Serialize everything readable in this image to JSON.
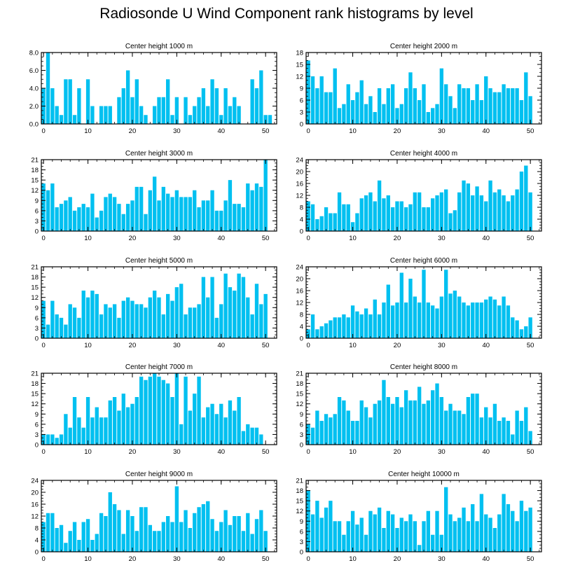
{
  "chart_data": [
    {
      "type": "bar",
      "title": "Center height 1000 m",
      "ylim": [
        0,
        8
      ],
      "yticks": [
        0,
        2,
        4,
        6,
        8
      ],
      "ytick_labels": [
        "0.0",
        "2.0",
        "4.0",
        "6.0",
        "8.0"
      ],
      "xlim": [
        -0.5,
        52.5
      ],
      "xticks": [
        0,
        10,
        20,
        30,
        40,
        50
      ],
      "xtick_labels": [
        "0",
        "10",
        "20",
        "30",
        "40",
        "50"
      ],
      "values": [
        4,
        8,
        4,
        2,
        1,
        5,
        5,
        1,
        4,
        0,
        5,
        2,
        0,
        2,
        2,
        2,
        0,
        3,
        4,
        6,
        3,
        5,
        2,
        1,
        0,
        2,
        3,
        3,
        5,
        1,
        3,
        0,
        3,
        1,
        2,
        3,
        4,
        2,
        5,
        4,
        1,
        4,
        2,
        3,
        2,
        0,
        0,
        5,
        4,
        6,
        1,
        1
      ]
    },
    {
      "type": "bar",
      "title": "Center height 2000 m",
      "ylim": [
        0,
        18
      ],
      "yticks": [
        0,
        3,
        6,
        9,
        12,
        15,
        18
      ],
      "ytick_labels": [
        "0",
        "3",
        "6",
        "9",
        "12",
        "15",
        "18"
      ],
      "xlim": [
        -0.5,
        52.5
      ],
      "xticks": [
        0,
        10,
        20,
        30,
        40,
        50
      ],
      "xtick_labels": [
        "0",
        "10",
        "20",
        "30",
        "40",
        "50"
      ],
      "values": [
        16,
        12,
        9,
        12,
        8,
        8,
        14,
        4,
        5,
        10,
        6,
        8,
        11,
        5,
        7,
        3,
        9,
        5,
        9,
        10,
        4,
        5,
        9,
        13,
        9,
        6,
        10,
        3,
        4,
        5,
        14,
        10,
        7,
        4,
        10,
        9,
        9,
        6,
        10,
        6,
        12,
        9,
        8,
        8,
        10,
        9,
        9,
        9,
        6,
        13,
        7
      ]
    },
    {
      "type": "bar",
      "title": "Center height 3000 m",
      "ylim": [
        0,
        21
      ],
      "yticks": [
        0,
        3,
        6,
        9,
        12,
        15,
        18,
        21
      ],
      "ytick_labels": [
        "0",
        "3",
        "6",
        "9",
        "12",
        "15",
        "18",
        "21"
      ],
      "xlim": [
        -0.5,
        52.5
      ],
      "xticks": [
        0,
        10,
        20,
        30,
        40,
        50
      ],
      "xtick_labels": [
        "0",
        "10",
        "20",
        "30",
        "40",
        "50"
      ],
      "values": [
        14,
        12,
        14,
        7,
        8,
        9,
        10,
        6,
        7,
        8,
        7,
        11,
        4,
        6,
        10,
        11,
        10,
        8,
        5,
        8,
        9,
        13,
        13,
        5,
        12,
        16,
        9,
        13,
        11,
        10,
        12,
        10,
        10,
        10,
        12,
        7,
        9,
        9,
        12,
        6,
        6,
        9,
        15,
        8,
        8,
        7,
        14,
        12,
        14,
        13,
        21
      ]
    },
    {
      "type": "bar",
      "title": "Center height 4000 m",
      "ylim": [
        0,
        24
      ],
      "yticks": [
        0,
        4,
        8,
        12,
        16,
        20,
        24
      ],
      "ytick_labels": [
        "0",
        "4",
        "8",
        "12",
        "16",
        "20",
        "24"
      ],
      "xlim": [
        -0.5,
        52.5
      ],
      "xticks": [
        0,
        10,
        20,
        30,
        40,
        50
      ],
      "xtick_labels": [
        "0",
        "10",
        "20",
        "30",
        "40",
        "50"
      ],
      "values": [
        10,
        9,
        4,
        5,
        8,
        6,
        6,
        13,
        9,
        9,
        3,
        6,
        11,
        12,
        13,
        10,
        17,
        11,
        12,
        8,
        10,
        10,
        8,
        9,
        13,
        13,
        8,
        8,
        11,
        12,
        13,
        14,
        6,
        7,
        13,
        17,
        16,
        12,
        15,
        12,
        10,
        17,
        13,
        14,
        12,
        10,
        12,
        14,
        20,
        22,
        13
      ]
    },
    {
      "type": "bar",
      "title": "Center height 5000 m",
      "ylim": [
        0,
        21
      ],
      "yticks": [
        0,
        3,
        6,
        9,
        12,
        15,
        18,
        21
      ],
      "ytick_labels": [
        "0",
        "3",
        "6",
        "9",
        "12",
        "15",
        "18",
        "21"
      ],
      "xlim": [
        -0.5,
        52.5
      ],
      "xticks": [
        0,
        10,
        20,
        30,
        40,
        50
      ],
      "xtick_labels": [
        "0",
        "10",
        "20",
        "30",
        "40",
        "50"
      ],
      "values": [
        11,
        4,
        11,
        7,
        6,
        4,
        10,
        9,
        6,
        14,
        12,
        14,
        13,
        7,
        10,
        9,
        10,
        6,
        11,
        12,
        11,
        10,
        10,
        9,
        12,
        14,
        12,
        7,
        13,
        11,
        15,
        16,
        7,
        9,
        9,
        10,
        18,
        12,
        18,
        6,
        10,
        19,
        15,
        14,
        19,
        18,
        12,
        7,
        16,
        10,
        13
      ]
    },
    {
      "type": "bar",
      "title": "Center height 6000 m",
      "ylim": [
        0,
        24
      ],
      "yticks": [
        0,
        4,
        8,
        12,
        16,
        20,
        24
      ],
      "ytick_labels": [
        "0",
        "4",
        "8",
        "12",
        "16",
        "20",
        "24"
      ],
      "xlim": [
        -0.5,
        52.5
      ],
      "xticks": [
        0,
        10,
        20,
        30,
        40,
        50
      ],
      "xtick_labels": [
        "0",
        "10",
        "20",
        "30",
        "40",
        "50"
      ],
      "values": [
        3,
        8,
        3,
        4,
        5,
        6,
        7,
        7,
        8,
        7,
        11,
        9,
        8,
        10,
        8,
        13,
        8,
        12,
        18,
        11,
        12,
        22,
        12,
        20,
        14,
        12,
        23,
        12,
        11,
        10,
        14,
        23,
        15,
        16,
        14,
        12,
        11,
        12,
        12,
        12,
        13,
        14,
        13,
        11,
        14,
        11,
        7,
        6,
        3,
        4,
        7
      ]
    },
    {
      "type": "bar",
      "title": "Center height 7000 m",
      "ylim": [
        0,
        21
      ],
      "yticks": [
        0,
        3,
        6,
        9,
        12,
        15,
        18,
        21
      ],
      "ytick_labels": [
        "0",
        "3",
        "6",
        "9",
        "12",
        "15",
        "18",
        "21"
      ],
      "xlim": [
        -0.5,
        52.5
      ],
      "xticks": [
        0,
        10,
        20,
        30,
        40,
        50
      ],
      "xtick_labels": [
        "0",
        "10",
        "20",
        "30",
        "40",
        "50"
      ],
      "values": [
        3,
        3,
        3,
        2,
        3,
        9,
        5,
        14,
        8,
        5,
        14,
        8,
        11,
        8,
        8,
        13,
        14,
        10,
        15,
        11,
        12,
        14,
        20,
        19,
        20,
        21,
        20,
        19,
        18,
        14,
        21,
        6,
        20,
        10,
        15,
        20,
        8,
        11,
        12,
        9,
        12,
        8,
        13,
        10,
        14,
        4,
        6,
        5,
        5,
        3
      ]
    },
    {
      "type": "bar",
      "title": "Center height 8000 m",
      "ylim": [
        0,
        21
      ],
      "yticks": [
        0,
        3,
        6,
        9,
        12,
        15,
        18,
        21
      ],
      "ytick_labels": [
        "0",
        "3",
        "6",
        "9",
        "12",
        "15",
        "18",
        "21"
      ],
      "xlim": [
        -0.5,
        52.5
      ],
      "xticks": [
        0,
        10,
        20,
        30,
        40,
        50
      ],
      "xtick_labels": [
        "0",
        "10",
        "20",
        "30",
        "40",
        "50"
      ],
      "values": [
        6,
        5,
        10,
        7,
        9,
        8,
        9,
        14,
        13,
        10,
        7,
        7,
        13,
        11,
        8,
        12,
        13,
        19,
        14,
        12,
        14,
        11,
        16,
        13,
        13,
        17,
        12,
        13,
        16,
        18,
        14,
        10,
        12,
        10,
        10,
        9,
        14,
        15,
        15,
        8,
        11,
        8,
        12,
        7,
        8,
        7,
        3,
        10,
        7,
        11,
        4
      ]
    },
    {
      "type": "bar",
      "title": "Center height 9000 m",
      "ylim": [
        0,
        24
      ],
      "yticks": [
        0,
        4,
        8,
        12,
        16,
        20,
        24
      ],
      "ytick_labels": [
        "0",
        "4",
        "8",
        "12",
        "16",
        "20",
        "24"
      ],
      "xlim": [
        -0.5,
        52.5
      ],
      "xticks": [
        0,
        10,
        20,
        30,
        40,
        50
      ],
      "xtick_labels": [
        "0",
        "10",
        "20",
        "30",
        "40",
        "50"
      ],
      "values": [
        10,
        13,
        13,
        8,
        9,
        3,
        7,
        10,
        4,
        10,
        11,
        4,
        6,
        13,
        12,
        20,
        16,
        14,
        6,
        14,
        12,
        7,
        15,
        15,
        9,
        7,
        7,
        10,
        12,
        10,
        22,
        10,
        14,
        8,
        13,
        15,
        16,
        17,
        11,
        7,
        10,
        14,
        9,
        12,
        12,
        7,
        13,
        6,
        11,
        14,
        7
      ]
    },
    {
      "type": "bar",
      "title": "Center height 10000 m",
      "ylim": [
        0,
        21
      ],
      "yticks": [
        0,
        3,
        6,
        9,
        12,
        15,
        18,
        21
      ],
      "ytick_labels": [
        "0",
        "3",
        "6",
        "9",
        "12",
        "15",
        "18",
        "21"
      ],
      "xlim": [
        -0.5,
        52.5
      ],
      "xticks": [
        0,
        10,
        20,
        30,
        40,
        50
      ],
      "xtick_labels": [
        "0",
        "10",
        "20",
        "30",
        "40",
        "50"
      ],
      "values": [
        18,
        11,
        15,
        10,
        13,
        15,
        9,
        9,
        5,
        9,
        12,
        8,
        10,
        5,
        12,
        11,
        13,
        7,
        12,
        11,
        7,
        10,
        9,
        11,
        9,
        2,
        9,
        12,
        5,
        12,
        5,
        19,
        11,
        9,
        10,
        13,
        9,
        14,
        9,
        17,
        11,
        10,
        7,
        11,
        17,
        14,
        12,
        9,
        15,
        12,
        13
      ]
    }
  ],
  "page": {
    "title": "Radiosonde U Wind Component rank histograms by level",
    "bar_color": "#00c0f0",
    "axis_color": "#000000"
  }
}
